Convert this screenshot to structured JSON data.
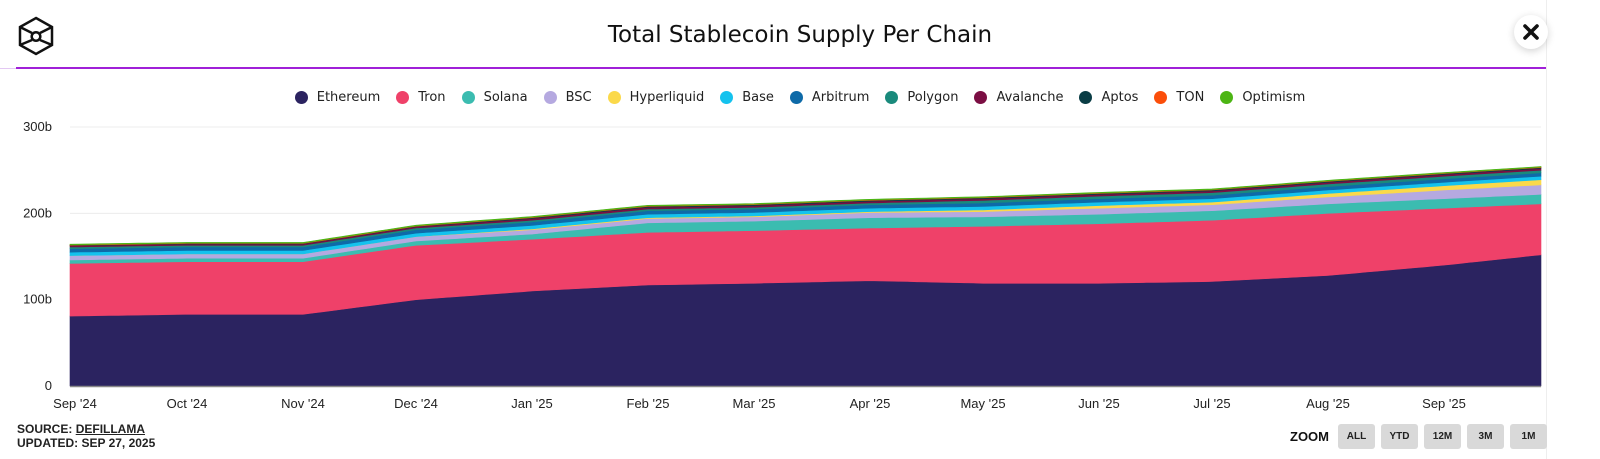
{
  "header": {
    "title": "Total Stablecoin Supply Per Chain",
    "close_icon": "close-x-icon",
    "logo_icon": "cube-logo-icon"
  },
  "colors": {
    "accent_rule": "#a020d8"
  },
  "footer": {
    "source_label": "SOURCE:",
    "source_link": "DEFILLAMA",
    "updated": "UPDATED: SEP 27, 2025"
  },
  "zoom": {
    "label": "ZOOM",
    "buttons": [
      "ALL",
      "YTD",
      "12M",
      "3M",
      "1M"
    ]
  },
  "chart_data": {
    "type": "area",
    "stacked": true,
    "title": "Total Stablecoin Supply Per Chain",
    "xlabel": "",
    "ylabel": "",
    "ylim": [
      0,
      300
    ],
    "y_unit": "b",
    "yticks": [
      0,
      100,
      200,
      300
    ],
    "ytick_labels": [
      "0",
      "100b",
      "200b",
      "300b"
    ],
    "grid": true,
    "legend_position": "top",
    "x_tick_labels": [
      "Sep '24",
      "Oct '24",
      "Nov '24",
      "Dec '24",
      "Jan '25",
      "Feb '25",
      "Mar '25",
      "Apr '25",
      "May '25",
      "Jun '25",
      "Jul '25",
      "Aug '25",
      "Sep '25"
    ],
    "x": [
      "Sep '24",
      "Oct '24",
      "Nov '24",
      "Dec '24",
      "Jan '25",
      "Feb '25",
      "Mar '25",
      "Apr '25",
      "May '25",
      "Jun '25",
      "Jul '25",
      "Aug '25",
      "Sep '25",
      "Sep 27 '25"
    ],
    "series": [
      {
        "name": "Ethereum",
        "color": "#2b2360",
        "values": [
          81,
          83,
          83,
          100,
          110,
          117,
          119,
          122,
          119,
          119,
          121,
          128,
          140,
          152
        ]
      },
      {
        "name": "Tron",
        "color": "#ef4169",
        "values": [
          61,
          61,
          61,
          63,
          60,
          61,
          61,
          61,
          66,
          69,
          71,
          72,
          66,
          59
        ]
      },
      {
        "name": "Solana",
        "color": "#3bbcb0",
        "values": [
          4,
          4,
          4,
          5,
          6,
          11,
          11,
          12,
          11,
          11,
          11,
          11,
          11,
          11
        ]
      },
      {
        "name": "BSC",
        "color": "#b5a9e0",
        "values": [
          5,
          5,
          5,
          5,
          5,
          5,
          5,
          6,
          6,
          7,
          7,
          8,
          10,
          11
        ]
      },
      {
        "name": "Hyperliquid",
        "color": "#fbd94a",
        "values": [
          0,
          0,
          0,
          0,
          1,
          1,
          1,
          1,
          2,
          3,
          3,
          4,
          5,
          6
        ]
      },
      {
        "name": "Base",
        "color": "#14c2ee",
        "values": [
          4,
          4,
          4,
          4,
          4,
          4,
          4,
          4,
          4,
          4,
          4,
          4,
          4,
          4
        ]
      },
      {
        "name": "Arbitrum",
        "color": "#0e6aa8",
        "values": [
          4,
          4,
          4,
          4,
          4,
          4,
          4,
          4,
          4,
          4,
          4,
          4,
          4,
          4
        ]
      },
      {
        "name": "Polygon",
        "color": "#1a8a7c",
        "values": [
          2,
          2,
          2,
          2,
          2,
          2,
          2,
          2,
          3,
          3,
          3,
          3,
          3,
          3
        ]
      },
      {
        "name": "Avalanche",
        "color": "#7b0e43",
        "values": [
          1.5,
          1.5,
          1.5,
          1.5,
          2,
          2,
          2,
          2,
          2,
          2,
          2,
          2,
          2,
          2
        ]
      },
      {
        "name": "Aptos",
        "color": "#0a3d45",
        "values": [
          0.5,
          0.5,
          0.5,
          0.5,
          1,
          1,
          1,
          1,
          1,
          1,
          1,
          1,
          1,
          1
        ]
      },
      {
        "name": "TON",
        "color": "#fb4e0a",
        "values": [
          0.5,
          0.5,
          0.5,
          0.5,
          0.5,
          0.5,
          0.5,
          0.5,
          0.5,
          0.5,
          0.5,
          0.5,
          0.5,
          0.5
        ]
      },
      {
        "name": "Optimism",
        "color": "#4cb514",
        "values": [
          0.8,
          0.8,
          0.8,
          0.8,
          0.8,
          0.8,
          0.8,
          0.8,
          0.8,
          0.8,
          0.8,
          0.8,
          0.8,
          0.8
        ]
      }
    ]
  }
}
